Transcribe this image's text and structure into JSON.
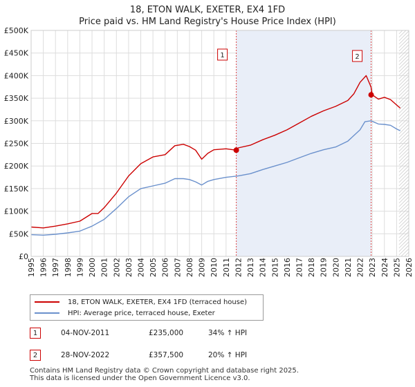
{
  "chart_data": {
    "type": "line",
    "title": "18, ETON WALK, EXETER, EX4 1FD",
    "subtitle": "Price paid vs. HM Land Registry's House Price Index (HPI)",
    "xlabel": "",
    "ylabel": "",
    "xlim": [
      1995,
      2026
    ],
    "ylim": [
      0,
      500000
    ],
    "x_ticks": [
      1995,
      1996,
      1997,
      1998,
      1999,
      2000,
      2001,
      2002,
      2003,
      2004,
      2005,
      2006,
      2007,
      2008,
      2009,
      2010,
      2011,
      2012,
      2013,
      2014,
      2015,
      2016,
      2017,
      2018,
      2019,
      2020,
      2021,
      2022,
      2023,
      2024,
      2025,
      2026
    ],
    "y_ticks": [
      {
        "value": 0,
        "label": "£0"
      },
      {
        "value": 50000,
        "label": "£50K"
      },
      {
        "value": 100000,
        "label": "£100K"
      },
      {
        "value": 150000,
        "label": "£150K"
      },
      {
        "value": 200000,
        "label": "£200K"
      },
      {
        "value": 250000,
        "label": "£250K"
      },
      {
        "value": 300000,
        "label": "£300K"
      },
      {
        "value": 350000,
        "label": "£350K"
      },
      {
        "value": 400000,
        "label": "£400K"
      },
      {
        "value": 450000,
        "label": "£450K"
      },
      {
        "value": 500000,
        "label": "£500K"
      }
    ],
    "series": [
      {
        "name": "18, ETON WALK, EXETER, EX4 1FD (terraced house)",
        "color": "#cc0000",
        "x": [
          1995,
          1996,
          1997,
          1998,
          1999,
          2000,
          2000.5,
          2001,
          2002,
          2003,
          2004,
          2005,
          2006,
          2006.8,
          2007.5,
          2008,
          2008.5,
          2009,
          2009.5,
          2010,
          2011,
          2011.84,
          2012,
          2013,
          2014,
          2015,
          2016,
          2017,
          2018,
          2019,
          2020,
          2021,
          2021.5,
          2022,
          2022.5,
          2022.9,
          2023,
          2023.5,
          2024,
          2024.5,
          2025,
          2025.3
        ],
        "values": [
          65000,
          63000,
          67000,
          72000,
          78000,
          95000,
          95000,
          108000,
          140000,
          178000,
          205000,
          220000,
          225000,
          245000,
          248000,
          243000,
          235000,
          215000,
          228000,
          236000,
          238000,
          235000,
          240000,
          246000,
          258000,
          268000,
          280000,
          295000,
          310000,
          322000,
          332000,
          345000,
          360000,
          385000,
          400000,
          375000,
          357500,
          348000,
          352000,
          347000,
          335000,
          328000
        ]
      },
      {
        "name": "HPI: Average price, terraced house, Exeter",
        "color": "#6a90cc",
        "x": [
          1995,
          1996,
          1997,
          1998,
          1999,
          2000,
          2001,
          2002,
          2003,
          2004,
          2005,
          2006,
          2006.8,
          2007.5,
          2008,
          2008.5,
          2009,
          2009.5,
          2010,
          2011,
          2012,
          2013,
          2014,
          2015,
          2016,
          2017,
          2018,
          2019,
          2020,
          2021,
          2022,
          2022.4,
          2022.9,
          2023.5,
          2024,
          2024.5,
          2025,
          2025.3
        ],
        "values": [
          48000,
          47000,
          49000,
          52000,
          56000,
          67000,
          82000,
          106000,
          132000,
          150000,
          156000,
          162000,
          172000,
          172000,
          170000,
          165000,
          158000,
          166000,
          170000,
          175000,
          178000,
          183000,
          192000,
          200000,
          208000,
          218000,
          228000,
          236000,
          242000,
          255000,
          280000,
          298000,
          300000,
          293000,
          292000,
          290000,
          282000,
          278000
        ]
      }
    ],
    "annotations": [
      {
        "label": "1",
        "x": 2011.84,
        "y": 235000,
        "series": "price"
      },
      {
        "label": "2",
        "x": 2022.91,
        "y": 357500,
        "series": "price"
      }
    ],
    "legend": "bottom-left",
    "grid": true
  },
  "legend": {
    "items": [
      {
        "label": "18, ETON WALK, EXETER, EX4 1FD (terraced house)",
        "color": "#cc0000"
      },
      {
        "label": "HPI: Average price, terraced house, Exeter",
        "color": "#6a90cc"
      }
    ]
  },
  "transactions": [
    {
      "badge": "1",
      "date": "04-NOV-2011",
      "price": "£235,000",
      "hpi": "34% ↑ HPI"
    },
    {
      "badge": "2",
      "date": "28-NOV-2022",
      "price": "£357,500",
      "hpi": "20% ↑ HPI"
    }
  ],
  "footer": {
    "line1": "Contains HM Land Registry data © Crown copyright and database right 2025.",
    "line2": "This data is licensed under the Open Government Licence v3.0."
  }
}
